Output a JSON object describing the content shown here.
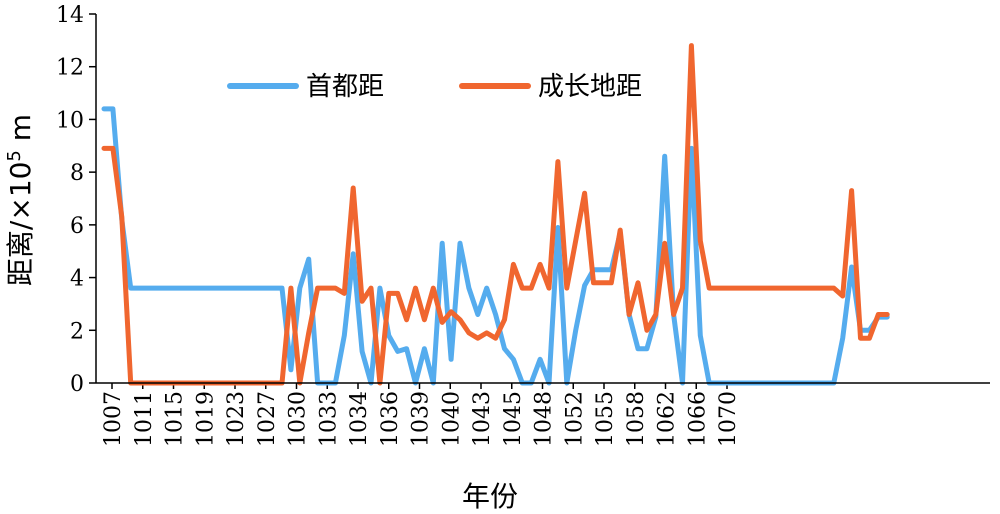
{
  "chart_data": {
    "type": "line",
    "xlabel": "年份",
    "ylabel_main": "距离/×10",
    "ylabel_sup": "5",
    "ylabel_unit": " m",
    "ylim": [
      0,
      14
    ],
    "yticks": [
      0,
      2,
      4,
      6,
      8,
      10,
      12,
      14
    ],
    "xtick_labels": [
      "1007",
      "1011",
      "1015",
      "1019",
      "1023",
      "1027",
      "1030",
      "1033",
      "1034",
      "1036",
      "1039",
      "1040",
      "1043",
      "1045",
      "1048",
      "1052",
      "1055",
      "1058",
      "1062",
      "1066",
      "1070"
    ],
    "legend_position": "top-center",
    "grid": false,
    "series": [
      {
        "name": "首都距",
        "color": "#55acee",
        "values": [
          10.4,
          10.4,
          6.2,
          3.6,
          3.6,
          3.6,
          3.6,
          3.6,
          3.6,
          3.6,
          3.6,
          3.6,
          3.6,
          3.6,
          3.6,
          3.6,
          3.6,
          3.6,
          3.6,
          3.6,
          3.6,
          0.5,
          3.6,
          4.7,
          0,
          0,
          0,
          1.8,
          4.9,
          1.2,
          0,
          3.6,
          1.8,
          1.2,
          1.3,
          0,
          1.3,
          0,
          5.3,
          0.9,
          5.3,
          3.6,
          2.6,
          3.6,
          2.6,
          1.3,
          0.9,
          0,
          0,
          0.9,
          0,
          5.9,
          0,
          2.0,
          3.7,
          4.3,
          4.3,
          4.3,
          5.7,
          2.6,
          1.3,
          1.3,
          2.5,
          8.6,
          2.6,
          0,
          8.9,
          1.8,
          0,
          0,
          0,
          0,
          0,
          0,
          0,
          0,
          0,
          0,
          0,
          0,
          0,
          0,
          0,
          1.7,
          4.4,
          2.0,
          2.0,
          2.5,
          2.5
        ]
      },
      {
        "name": "成长地距",
        "color": "#f0662f",
        "values": [
          8.9,
          8.9,
          6.3,
          0,
          0,
          0,
          0,
          0,
          0,
          0,
          0,
          0,
          0,
          0,
          0,
          0,
          0,
          0,
          0,
          0,
          0,
          3.6,
          0,
          1.9,
          3.6,
          3.6,
          3.6,
          3.4,
          7.4,
          3.1,
          3.6,
          0,
          3.4,
          3.4,
          2.4,
          3.6,
          2.4,
          3.6,
          2.3,
          2.7,
          2.4,
          1.9,
          1.7,
          1.9,
          1.7,
          2.4,
          4.5,
          3.6,
          3.6,
          4.5,
          3.6,
          8.4,
          3.6,
          5.4,
          7.2,
          3.8,
          3.8,
          3.8,
          5.8,
          2.6,
          3.8,
          2.0,
          2.6,
          5.3,
          2.6,
          3.6,
          12.8,
          5.4,
          3.6,
          3.6,
          3.6,
          3.6,
          3.6,
          3.6,
          3.6,
          3.6,
          3.6,
          3.6,
          3.6,
          3.6,
          3.6,
          3.6,
          3.6,
          3.3,
          7.3,
          1.7,
          1.7,
          2.6,
          2.6
        ]
      }
    ]
  }
}
